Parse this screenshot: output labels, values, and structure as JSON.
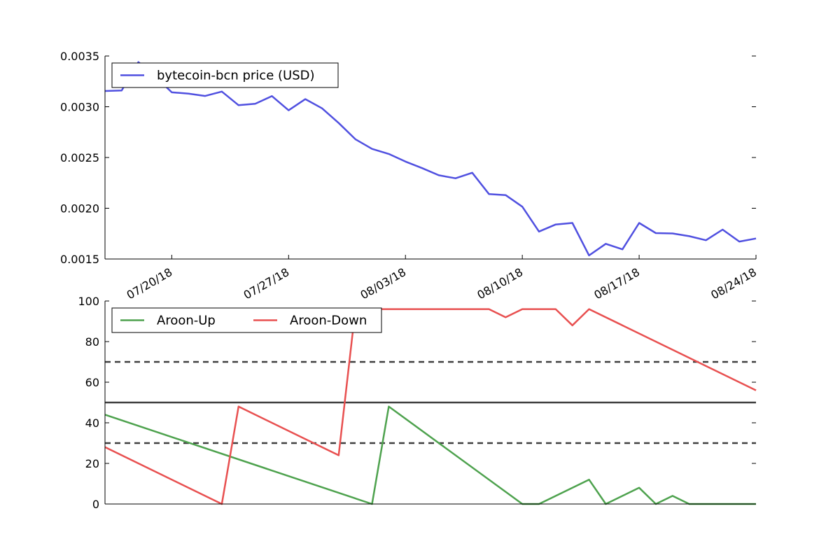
{
  "chart_data": [
    {
      "type": "line",
      "ylim": [
        0.0015,
        0.0035
      ],
      "y_ticks": [
        "0.0015",
        "0.0020",
        "0.0025",
        "0.0030",
        "0.0035"
      ],
      "x_ticks": [
        "07/20/18",
        "07/27/18",
        "08/03/18",
        "08/10/18",
        "08/17/18",
        "08/24/18"
      ],
      "xlim": [
        "07/16/18",
        "08/24/18"
      ],
      "legend_position": "top-left",
      "series": [
        {
          "name": "bytecoin-bcn price (USD)",
          "color": "#5050e0",
          "x": [
            "07/16/18",
            "07/17/18",
            "07/18/18",
            "07/19/18",
            "07/20/18",
            "07/21/18",
            "07/22/18",
            "07/23/18",
            "07/24/18",
            "07/25/18",
            "07/26/18",
            "07/27/18",
            "07/28/18",
            "07/29/18",
            "07/30/18",
            "07/31/18",
            "08/01/18",
            "08/02/18",
            "08/03/18",
            "08/04/18",
            "08/05/18",
            "08/06/18",
            "08/07/18",
            "08/08/18",
            "08/09/18",
            "08/10/18",
            "08/11/18",
            "08/12/18",
            "08/13/18",
            "08/14/18",
            "08/15/18",
            "08/16/18",
            "08/17/18",
            "08/18/18",
            "08/19/18",
            "08/20/18",
            "08/21/18",
            "08/22/18",
            "08/23/18",
            "08/24/18"
          ],
          "values": [
            0.003155,
            0.00316,
            0.00344,
            0.0033,
            0.003142,
            0.00313,
            0.003106,
            0.00315,
            0.003015,
            0.00303,
            0.003105,
            0.002965,
            0.003075,
            0.002985,
            0.00284,
            0.00268,
            0.002585,
            0.002535,
            0.00246,
            0.002395,
            0.002325,
            0.002295,
            0.00235,
            0.00214,
            0.00213,
            0.002015,
            0.00177,
            0.00184,
            0.001855,
            0.001535,
            0.00165,
            0.001595,
            0.001855,
            0.001755,
            0.001752,
            0.001725,
            0.001685,
            0.00179,
            0.001672,
            0.001702
          ]
        }
      ]
    },
    {
      "type": "line",
      "ylim": [
        0,
        100
      ],
      "y_ticks": [
        "0",
        "20",
        "40",
        "60",
        "80",
        "100"
      ],
      "xlim": [
        "07/16/18",
        "08/24/18"
      ],
      "reference_lines": [
        {
          "value": 70,
          "style": "dashed"
        },
        {
          "value": 50,
          "style": "solid"
        },
        {
          "value": 30,
          "style": "dashed"
        }
      ],
      "legend_position": "top-left",
      "series": [
        {
          "name": "Aroon-Up",
          "color": "#4ea24e",
          "x": [
            "07/16/18",
            "08/01/18",
            "08/02/18",
            "08/10/18",
            "08/11/18",
            "08/14/18",
            "08/15/18",
            "08/17/18",
            "08/18/18",
            "08/19/18",
            "08/20/18",
            "08/24/18"
          ],
          "values": [
            44,
            0,
            48,
            0,
            0,
            12,
            0,
            8,
            0,
            4,
            0,
            0
          ]
        },
        {
          "name": "Aroon-Down",
          "color": "#e85050",
          "x": [
            "07/16/18",
            "07/23/18",
            "07/24/18",
            "07/30/18",
            "07/31/18",
            "08/04/18",
            "08/05/18",
            "08/08/18",
            "08/09/18",
            "08/10/18",
            "08/11/18",
            "08/12/18",
            "08/13/18",
            "08/14/18",
            "08/24/18"
          ],
          "values": [
            28,
            0,
            48,
            24,
            96,
            96,
            96,
            96,
            92,
            96,
            96,
            96,
            88,
            96,
            56
          ]
        }
      ]
    }
  ]
}
